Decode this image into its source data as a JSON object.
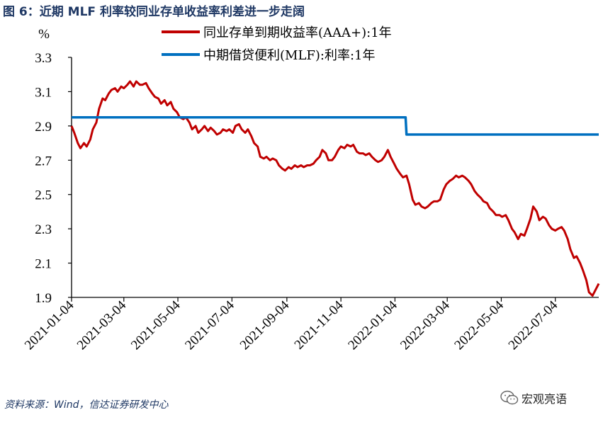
{
  "figure": {
    "title": "图 6：近期 MLF 利率较同业存单收益率利差进一步走阔",
    "source": "资料来源：Wind，信达证券研发中心",
    "watermark": "宏观亮语",
    "watermark_icon": "wechat-icon"
  },
  "chart_data": {
    "type": "line",
    "ylabel": "%",
    "xlabel": "",
    "ylim": [
      1.9,
      3.3
    ],
    "yticks": [
      "3.3",
      "3.1",
      "2.9",
      "2.7",
      "2.5",
      "2.3",
      "2.1",
      "1.9"
    ],
    "xlim": [
      "2021-01-04",
      "2022-08-22"
    ],
    "xticks": [
      "2021-01-04",
      "2021-03-04",
      "2021-05-04",
      "2021-07-04",
      "2021-09-04",
      "2021-11-04",
      "2022-01-04",
      "2022-03-04",
      "2022-05-04",
      "2022-07-04"
    ],
    "legend_position": "top-center",
    "grid": false,
    "series": [
      {
        "name": "同业存单到期收益率(AAA+):1年",
        "color": "#c00000",
        "points": [
          [
            "2021-01-04",
            2.9
          ],
          [
            "2021-01-07",
            2.86
          ],
          [
            "2021-01-11",
            2.8
          ],
          [
            "2021-01-14",
            2.77
          ],
          [
            "2021-01-18",
            2.8
          ],
          [
            "2021-01-21",
            2.78
          ],
          [
            "2021-01-25",
            2.82
          ],
          [
            "2021-01-28",
            2.88
          ],
          [
            "2021-02-01",
            2.92
          ],
          [
            "2021-02-04",
            3.0
          ],
          [
            "2021-02-08",
            3.06
          ],
          [
            "2021-02-11",
            3.05
          ],
          [
            "2021-02-15",
            3.09
          ],
          [
            "2021-02-18",
            3.11
          ],
          [
            "2021-02-22",
            3.12
          ],
          [
            "2021-02-25",
            3.1
          ],
          [
            "2021-03-01",
            3.13
          ],
          [
            "2021-03-04",
            3.12
          ],
          [
            "2021-03-08",
            3.14
          ],
          [
            "2021-03-11",
            3.16
          ],
          [
            "2021-03-15",
            3.13
          ],
          [
            "2021-03-18",
            3.16
          ],
          [
            "2021-03-22",
            3.14
          ],
          [
            "2021-03-25",
            3.14
          ],
          [
            "2021-03-29",
            3.15
          ],
          [
            "2021-04-01",
            3.12
          ],
          [
            "2021-04-05",
            3.09
          ],
          [
            "2021-04-08",
            3.07
          ],
          [
            "2021-04-12",
            3.06
          ],
          [
            "2021-04-15",
            3.03
          ],
          [
            "2021-04-19",
            3.05
          ],
          [
            "2021-04-22",
            3.02
          ],
          [
            "2021-04-26",
            3.04
          ],
          [
            "2021-04-29",
            3.0
          ],
          [
            "2021-05-03",
            2.98
          ],
          [
            "2021-05-06",
            2.95
          ],
          [
            "2021-05-10",
            2.94
          ],
          [
            "2021-05-13",
            2.95
          ],
          [
            "2021-05-17",
            2.92
          ],
          [
            "2021-05-20",
            2.88
          ],
          [
            "2021-05-24",
            2.9
          ],
          [
            "2021-05-27",
            2.86
          ],
          [
            "2021-05-31",
            2.88
          ],
          [
            "2021-06-03",
            2.9
          ],
          [
            "2021-06-07",
            2.87
          ],
          [
            "2021-06-10",
            2.89
          ],
          [
            "2021-06-14",
            2.87
          ],
          [
            "2021-06-17",
            2.85
          ],
          [
            "2021-06-21",
            2.86
          ],
          [
            "2021-06-24",
            2.88
          ],
          [
            "2021-06-28",
            2.87
          ],
          [
            "2021-07-01",
            2.88
          ],
          [
            "2021-07-05",
            2.86
          ],
          [
            "2021-07-08",
            2.9
          ],
          [
            "2021-07-12",
            2.91
          ],
          [
            "2021-07-15",
            2.88
          ],
          [
            "2021-07-19",
            2.86
          ],
          [
            "2021-07-22",
            2.88
          ],
          [
            "2021-07-26",
            2.84
          ],
          [
            "2021-07-29",
            2.8
          ],
          [
            "2021-08-02",
            2.78
          ],
          [
            "2021-08-05",
            2.72
          ],
          [
            "2021-08-09",
            2.71
          ],
          [
            "2021-08-12",
            2.72
          ],
          [
            "2021-08-16",
            2.7
          ],
          [
            "2021-08-19",
            2.71
          ],
          [
            "2021-08-23",
            2.7
          ],
          [
            "2021-08-26",
            2.67
          ],
          [
            "2021-08-30",
            2.65
          ],
          [
            "2021-09-02",
            2.64
          ],
          [
            "2021-09-06",
            2.66
          ],
          [
            "2021-09-09",
            2.65
          ],
          [
            "2021-09-13",
            2.67
          ],
          [
            "2021-09-16",
            2.66
          ],
          [
            "2021-09-20",
            2.67
          ],
          [
            "2021-09-23",
            2.66
          ],
          [
            "2021-09-27",
            2.67
          ],
          [
            "2021-09-30",
            2.67
          ],
          [
            "2021-10-04",
            2.68
          ],
          [
            "2021-10-07",
            2.7
          ],
          [
            "2021-10-11",
            2.72
          ],
          [
            "2021-10-14",
            2.76
          ],
          [
            "2021-10-18",
            2.74
          ],
          [
            "2021-10-21",
            2.7
          ],
          [
            "2021-10-25",
            2.7
          ],
          [
            "2021-10-28",
            2.72
          ],
          [
            "2021-11-01",
            2.76
          ],
          [
            "2021-11-04",
            2.78
          ],
          [
            "2021-11-08",
            2.77
          ],
          [
            "2021-11-11",
            2.79
          ],
          [
            "2021-11-15",
            2.78
          ],
          [
            "2021-11-18",
            2.79
          ],
          [
            "2021-11-22",
            2.75
          ],
          [
            "2021-11-25",
            2.74
          ],
          [
            "2021-11-29",
            2.74
          ],
          [
            "2021-12-02",
            2.73
          ],
          [
            "2021-12-06",
            2.74
          ],
          [
            "2021-12-09",
            2.72
          ],
          [
            "2021-12-13",
            2.7
          ],
          [
            "2021-12-16",
            2.69
          ],
          [
            "2021-12-20",
            2.7
          ],
          [
            "2021-12-23",
            2.72
          ],
          [
            "2021-12-27",
            2.76
          ],
          [
            "2021-12-30",
            2.72
          ],
          [
            "2022-01-03",
            2.68
          ],
          [
            "2022-01-06",
            2.65
          ],
          [
            "2022-01-10",
            2.62
          ],
          [
            "2022-01-13",
            2.6
          ],
          [
            "2022-01-17",
            2.61
          ],
          [
            "2022-01-20",
            2.56
          ],
          [
            "2022-01-24",
            2.47
          ],
          [
            "2022-01-27",
            2.44
          ],
          [
            "2022-01-31",
            2.45
          ],
          [
            "2022-02-03",
            2.43
          ],
          [
            "2022-02-07",
            2.42
          ],
          [
            "2022-02-10",
            2.43
          ],
          [
            "2022-02-14",
            2.45
          ],
          [
            "2022-02-17",
            2.46
          ],
          [
            "2022-02-21",
            2.46
          ],
          [
            "2022-02-24",
            2.47
          ],
          [
            "2022-02-28",
            2.53
          ],
          [
            "2022-03-03",
            2.56
          ],
          [
            "2022-03-07",
            2.58
          ],
          [
            "2022-03-10",
            2.59
          ],
          [
            "2022-03-14",
            2.61
          ],
          [
            "2022-03-17",
            2.6
          ],
          [
            "2022-03-21",
            2.61
          ],
          [
            "2022-03-24",
            2.6
          ],
          [
            "2022-03-28",
            2.58
          ],
          [
            "2022-03-31",
            2.56
          ],
          [
            "2022-04-04",
            2.52
          ],
          [
            "2022-04-07",
            2.5
          ],
          [
            "2022-04-11",
            2.48
          ],
          [
            "2022-04-14",
            2.46
          ],
          [
            "2022-04-18",
            2.45
          ],
          [
            "2022-04-21",
            2.42
          ],
          [
            "2022-04-25",
            2.4
          ],
          [
            "2022-04-28",
            2.38
          ],
          [
            "2022-05-02",
            2.38
          ],
          [
            "2022-05-05",
            2.37
          ],
          [
            "2022-05-09",
            2.38
          ],
          [
            "2022-05-12",
            2.35
          ],
          [
            "2022-05-16",
            2.3
          ],
          [
            "2022-05-19",
            2.28
          ],
          [
            "2022-05-23",
            2.24
          ],
          [
            "2022-05-26",
            2.27
          ],
          [
            "2022-05-30",
            2.26
          ],
          [
            "2022-06-02",
            2.3
          ],
          [
            "2022-06-06",
            2.36
          ],
          [
            "2022-06-09",
            2.43
          ],
          [
            "2022-06-13",
            2.4
          ],
          [
            "2022-06-16",
            2.35
          ],
          [
            "2022-06-20",
            2.37
          ],
          [
            "2022-06-23",
            2.36
          ],
          [
            "2022-06-27",
            2.32
          ],
          [
            "2022-06-30",
            2.3
          ],
          [
            "2022-07-04",
            2.29
          ],
          [
            "2022-07-07",
            2.3
          ],
          [
            "2022-07-11",
            2.31
          ],
          [
            "2022-07-14",
            2.29
          ],
          [
            "2022-07-18",
            2.24
          ],
          [
            "2022-07-21",
            2.18
          ],
          [
            "2022-07-25",
            2.13
          ],
          [
            "2022-07-28",
            2.14
          ],
          [
            "2022-08-01",
            2.1
          ],
          [
            "2022-08-04",
            2.06
          ],
          [
            "2022-08-08",
            2.0
          ],
          [
            "2022-08-11",
            1.93
          ],
          [
            "2022-08-15",
            1.91
          ],
          [
            "2022-08-18",
            1.94
          ],
          [
            "2022-08-22",
            1.98
          ]
        ]
      },
      {
        "name": "中期借贷便利(MLF):利率:1年",
        "color": "#0070c0",
        "points": [
          [
            "2021-01-04",
            2.95
          ],
          [
            "2022-01-16",
            2.95
          ],
          [
            "2022-01-17",
            2.85
          ],
          [
            "2022-08-22",
            2.85
          ]
        ]
      }
    ]
  }
}
